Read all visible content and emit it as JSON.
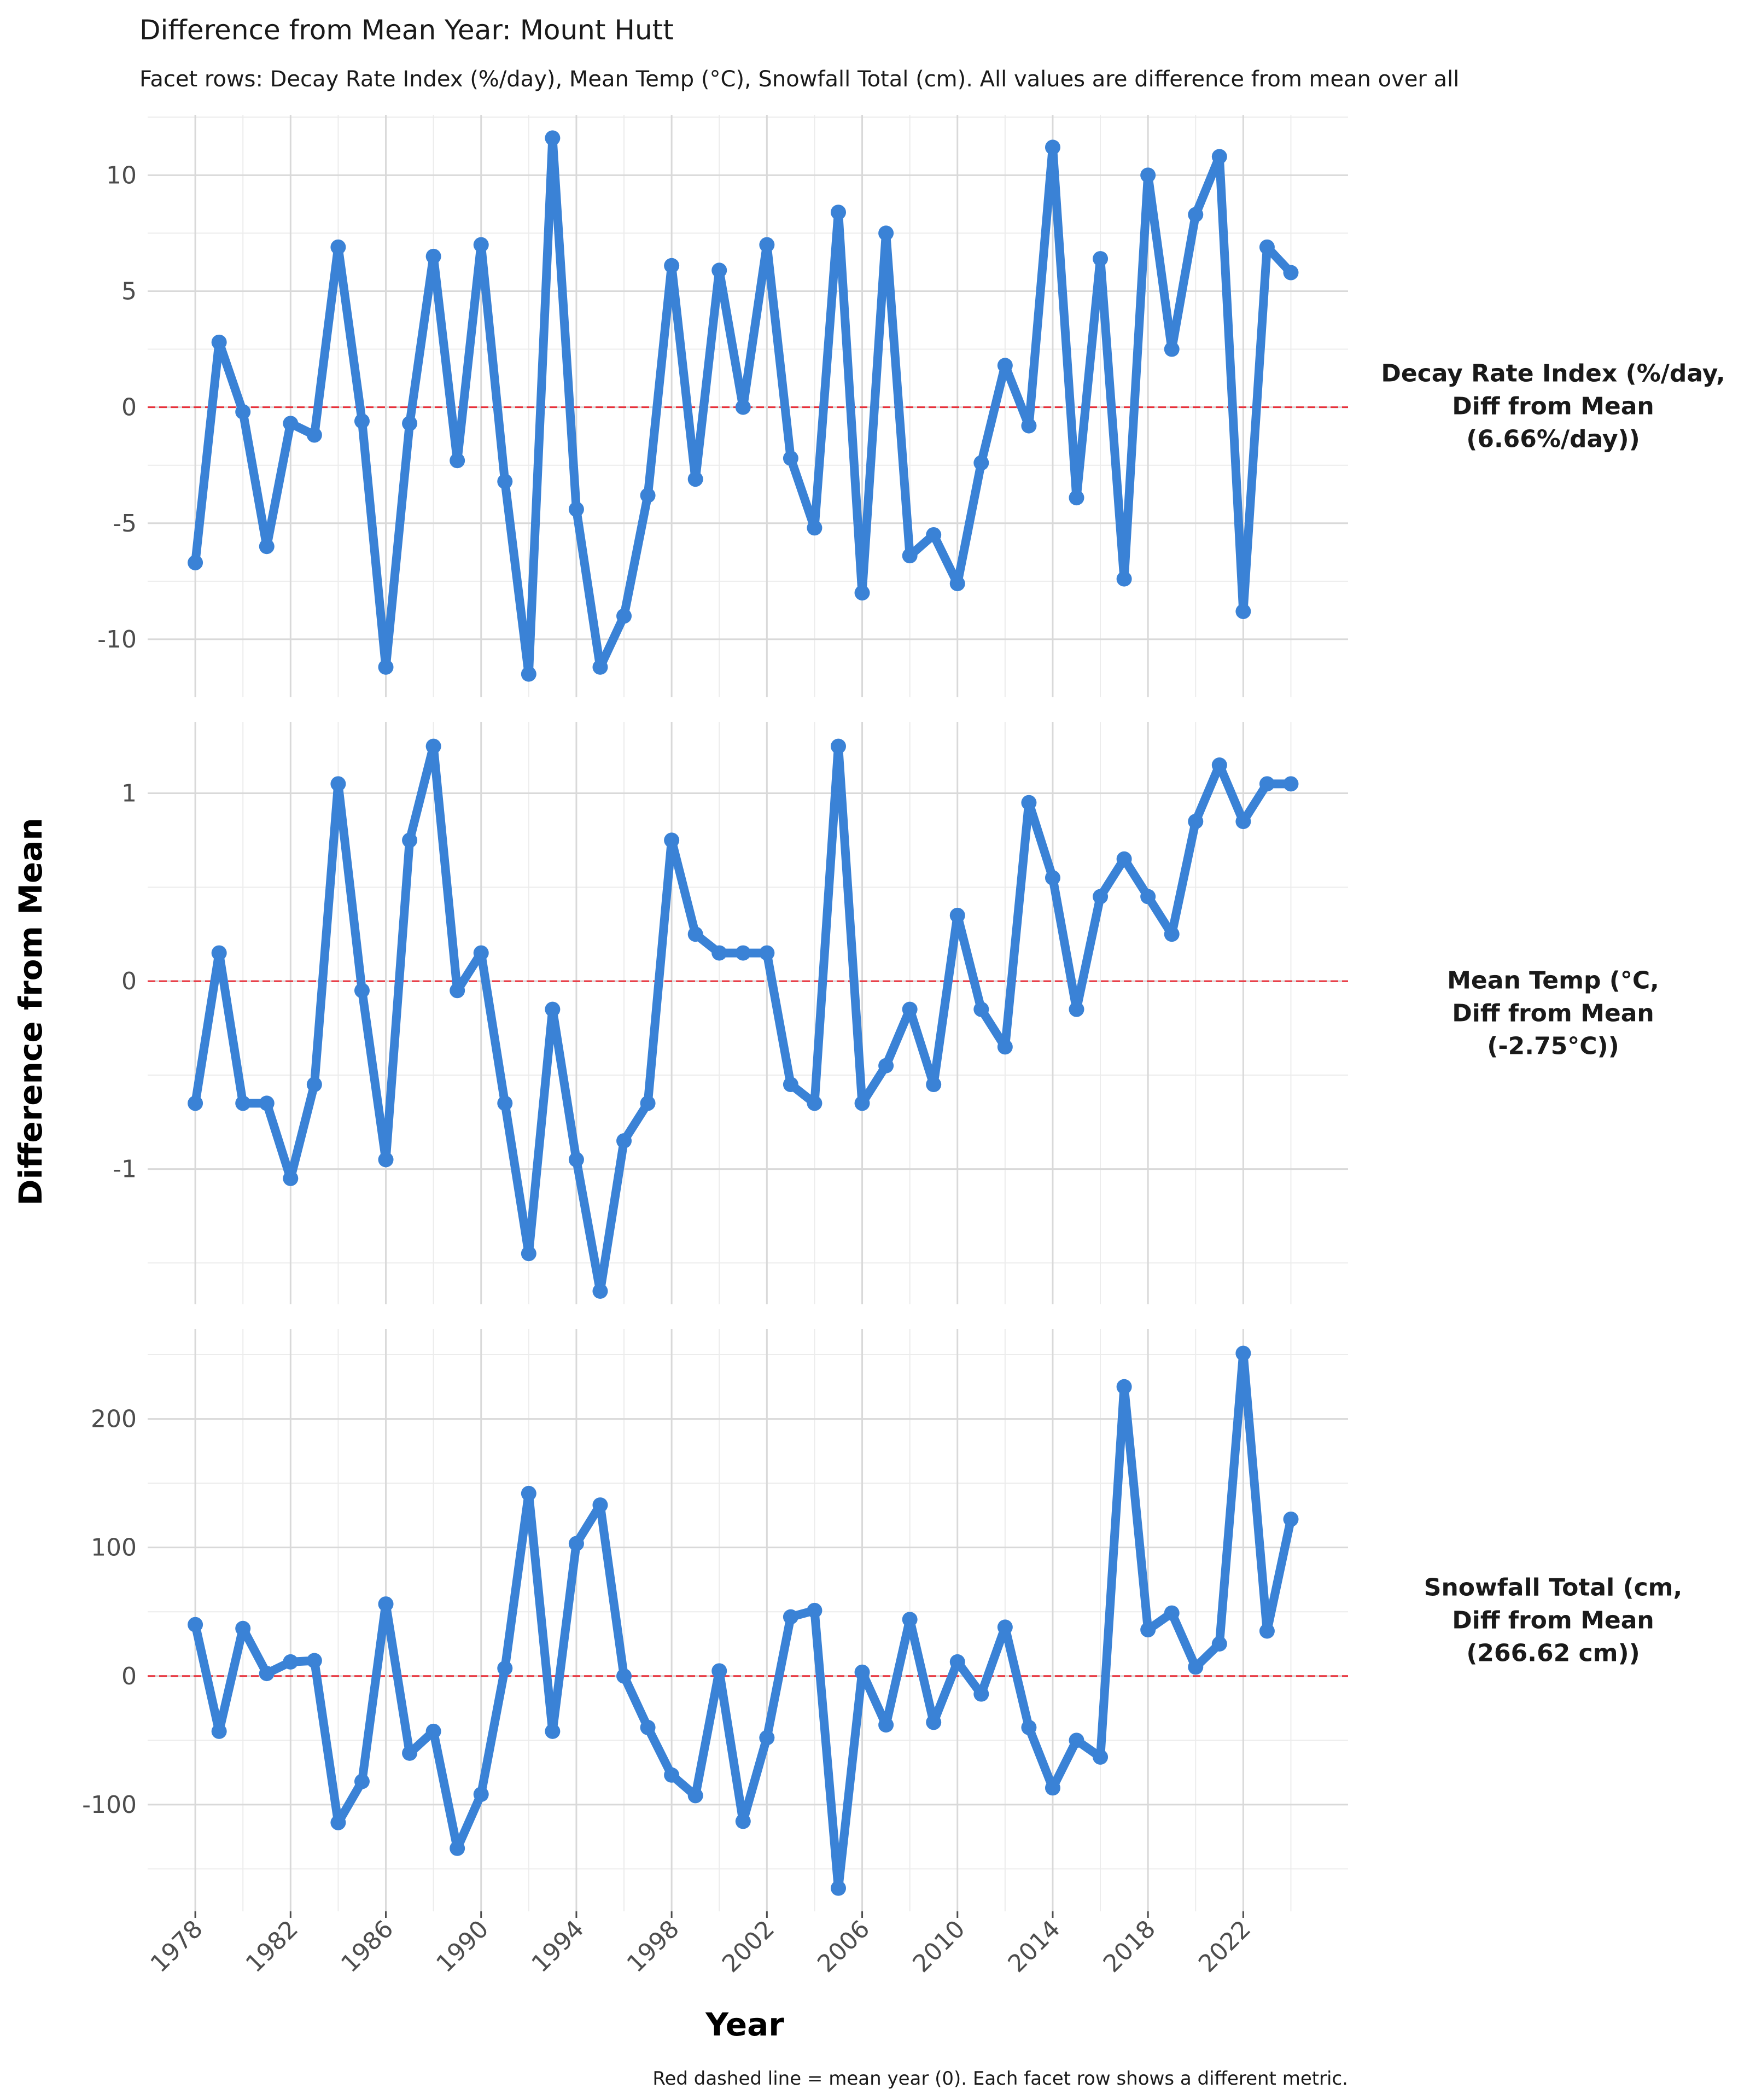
{
  "chart_data": {
    "type": "line",
    "title": "Difference from Mean Year: Mount Hutt",
    "subtitle": "Facet rows: Decay Rate Index (%/day), Mean Temp (°C), Snowfall Total (cm). All values are difference from mean over all",
    "xlabel": "Year",
    "ylabel": "Difference from Mean",
    "caption": "Red dashed line = mean year (0). Each facet row shows a different metric.",
    "x": [
      1978,
      1979,
      1980,
      1981,
      1982,
      1983,
      1984,
      1985,
      1986,
      1987,
      1988,
      1989,
      1990,
      1991,
      1992,
      1993,
      1994,
      1995,
      1996,
      1997,
      1998,
      1999,
      2000,
      2001,
      2002,
      2003,
      2004,
      2005,
      2006,
      2007,
      2008,
      2009,
      2010,
      2011,
      2012,
      2013,
      2014,
      2015,
      2016,
      2017,
      2018,
      2019,
      2020,
      2021,
      2022,
      2023,
      2024
    ],
    "xticks": [
      1978,
      1982,
      1986,
      1990,
      1994,
      1998,
      2002,
      2006,
      2010,
      2014,
      2018,
      2022
    ],
    "xlim": [
      1976,
      2026.4
    ],
    "grid": true,
    "reference_line": {
      "y": 0,
      "color": "#e8303a",
      "style": "dashed"
    },
    "line_color": "#3a82d6",
    "facets": [
      {
        "strip": [
          "Decay Rate Index (%/day,",
          "Diff from Mean",
          "(6.66%/day))"
        ],
        "ylim": [
          -12.5,
          12.6
        ],
        "yticks": [
          -10,
          -5,
          0,
          5,
          10
        ],
        "ytick_labels": [
          "-10",
          "-5",
          "0",
          "5",
          "10"
        ],
        "values": [
          -6.7,
          2.8,
          -0.2,
          -6.0,
          -0.7,
          -1.2,
          6.9,
          -0.6,
          -11.2,
          -0.7,
          6.5,
          -2.3,
          7.0,
          -3.2,
          -11.5,
          11.6,
          -4.4,
          -11.2,
          -9.0,
          -3.8,
          6.1,
          -3.1,
          5.9,
          0.0,
          7.0,
          -2.2,
          -5.2,
          8.4,
          -8.0,
          7.5,
          -6.4,
          -5.5,
          -7.6,
          -2.4,
          1.8,
          -0.8,
          11.2,
          -3.9,
          6.4,
          -7.4,
          10.0,
          2.5,
          8.3,
          10.8,
          -8.8,
          6.9,
          5.8
        ]
      },
      {
        "strip": [
          "Mean Temp (°C,",
          "Diff from Mean",
          "(-2.75°C))"
        ],
        "ylim": [
          -1.72,
          1.38
        ],
        "yticks": [
          -1,
          0,
          1
        ],
        "ytick_labels": [
          "-1",
          "0",
          "1"
        ],
        "values": [
          -0.65,
          0.15,
          -0.65,
          -0.65,
          -1.05,
          -0.55,
          1.05,
          -0.05,
          -0.95,
          0.75,
          1.25,
          -0.05,
          0.15,
          -0.65,
          -1.45,
          -0.15,
          -0.95,
          -1.65,
          -0.85,
          -0.65,
          0.75,
          0.25,
          0.15,
          0.15,
          0.15,
          -0.55,
          -0.65,
          1.25,
          -0.65,
          -0.45,
          -0.15,
          -0.55,
          0.35,
          -0.15,
          -0.35,
          0.95,
          0.55,
          -0.15,
          0.45,
          0.65,
          0.45,
          0.25,
          0.85,
          1.15,
          0.85,
          1.05,
          1.05
        ]
      },
      {
        "strip": [
          "Snowfall Total (cm,",
          "Diff from Mean",
          "(266.62 cm))"
        ],
        "ylim": [
          -183,
          270
        ],
        "yticks": [
          -100,
          0,
          100,
          200
        ],
        "ytick_labels": [
          "-100",
          "0",
          "100",
          "200"
        ],
        "values": [
          40,
          -43,
          37,
          2,
          11,
          12,
          -114,
          -82,
          56,
          -60,
          -43,
          -134,
          -92,
          6,
          142,
          -43,
          103,
          133,
          0,
          -40,
          -77,
          -93,
          4,
          -113,
          -48,
          46,
          51,
          -165,
          3,
          -38,
          44,
          -36,
          11,
          -14,
          38,
          -40,
          -87,
          -50,
          -63,
          225,
          36,
          49,
          7,
          25,
          251,
          35,
          122
        ]
      }
    ]
  }
}
